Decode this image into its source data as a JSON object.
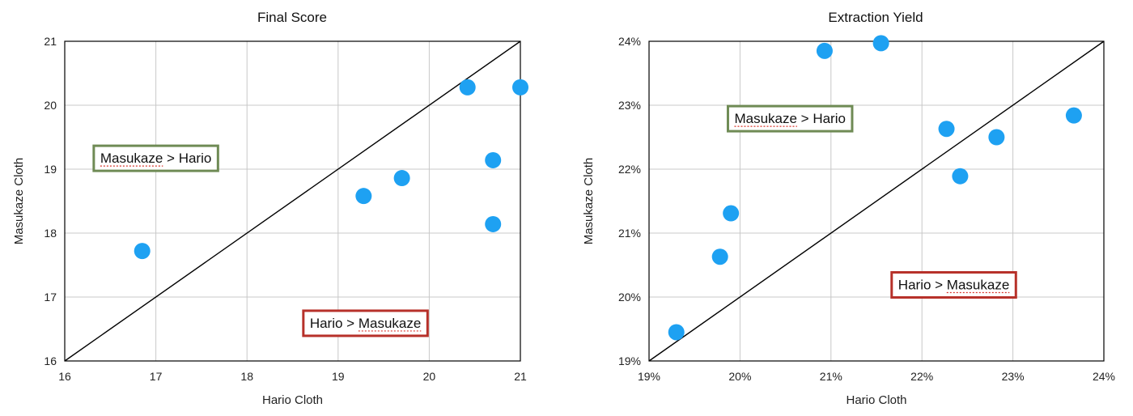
{
  "chart_data": [
    {
      "type": "scatter",
      "title": "Final Score",
      "xlabel": "Hario Cloth",
      "ylabel": "Masukaze Cloth",
      "xlim": [
        16,
        21
      ],
      "ylim": [
        16,
        21
      ],
      "x_ticks": [
        "16",
        "17",
        "18",
        "19",
        "20",
        "21"
      ],
      "y_ticks": [
        "16",
        "17",
        "18",
        "19",
        "20",
        "21"
      ],
      "grid": true,
      "reference_line": "y = x",
      "marker_color": "#1ea1f2",
      "points": [
        {
          "x": 16.85,
          "y": 17.72
        },
        {
          "x": 19.28,
          "y": 18.58
        },
        {
          "x": 19.7,
          "y": 18.86
        },
        {
          "x": 20.42,
          "y": 20.28
        },
        {
          "x": 21.0,
          "y": 20.28
        },
        {
          "x": 20.7,
          "y": 19.14
        },
        {
          "x": 20.7,
          "y": 18.14
        }
      ],
      "annotations": [
        {
          "text": "Masukaze > Hario",
          "x": 17.0,
          "y": 19.1,
          "border_color": "#6f8b55",
          "underline_word": "Masukaze"
        },
        {
          "text": "Hario > Masukaze",
          "x": 19.3,
          "y": 16.52,
          "border_color": "#b7312a",
          "underline_word": "Masukaze"
        }
      ]
    },
    {
      "type": "scatter",
      "title": "Extraction Yield",
      "xlabel": "Hario Cloth",
      "ylabel": "Masukaze Cloth",
      "xlim": [
        19,
        24
      ],
      "ylim": [
        19,
        24
      ],
      "x_ticks": [
        "19%",
        "20%",
        "21%",
        "22%",
        "23%",
        "24%"
      ],
      "y_ticks": [
        "19%",
        "20%",
        "21%",
        "22%",
        "23%",
        "24%"
      ],
      "grid": true,
      "reference_line": "y = x",
      "marker_color": "#1ea1f2",
      "points": [
        {
          "x": 19.3,
          "y": 19.45
        },
        {
          "x": 19.78,
          "y": 20.63
        },
        {
          "x": 19.9,
          "y": 21.31
        },
        {
          "x": 20.93,
          "y": 23.85
        },
        {
          "x": 21.55,
          "y": 23.97
        },
        {
          "x": 22.27,
          "y": 22.63
        },
        {
          "x": 22.42,
          "y": 21.89
        },
        {
          "x": 22.82,
          "y": 22.5
        },
        {
          "x": 23.67,
          "y": 22.84
        }
      ],
      "annotations": [
        {
          "text": "Masukaze > Hario",
          "x": 20.55,
          "y": 22.72,
          "border_color": "#6f8b55",
          "underline_word": "Masukaze"
        },
        {
          "text": "Hario > Masukaze",
          "x": 22.35,
          "y": 20.12,
          "border_color": "#b7312a",
          "underline_word": "Masukaze"
        }
      ]
    }
  ]
}
